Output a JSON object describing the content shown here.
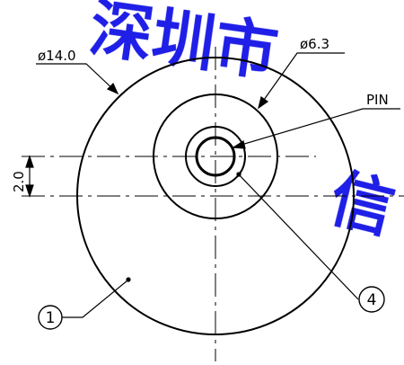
{
  "drawing": {
    "dim_outer_diameter": "ø14.0",
    "dim_inner_diameter": "ø6.3",
    "pin_label": "PIN",
    "offset_dim": "2.0",
    "callout_body": "1",
    "callout_pin": "4",
    "watermark": "深圳市",
    "watermark_tail": "信",
    "colors": {
      "line": "#000000",
      "watermark": "#1414e6"
    }
  }
}
